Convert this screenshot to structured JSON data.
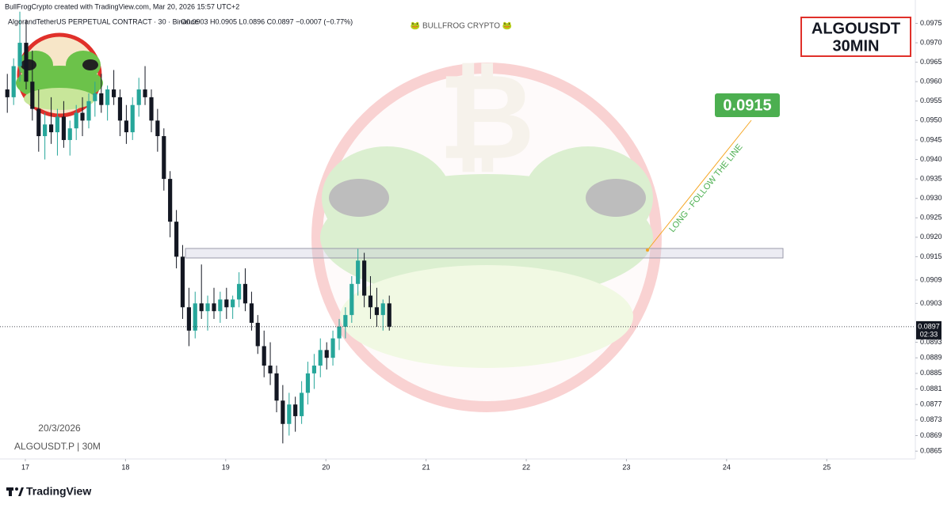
{
  "chart_data": {
    "type": "candlestick",
    "credit": "BullFrogCrypto created with TradingView.com, Mar 20, 2026 15:57 UTC+2",
    "legend": "AlgorandTetherUS PERPETUAL CONTRACT · 30 · Binance",
    "ohlc_text": "O0.0903 H0.0905 L0.0896 C0.0897 −0.0007 (−0.77%)",
    "watermark": "🐸 BULLFROG CRYPTO 🐸",
    "badge": {
      "line1": "ALGOUSDT",
      "line2": "30MIN"
    },
    "target_label": "0.0915",
    "annotation": "LONG - FOLLOW THE LINE",
    "date_text": "20/3/2026",
    "symbol_text": "ALGOUSDT.P | 30M",
    "brand": "TradingView",
    "up_color": "#26a69a",
    "down_color": "#131722",
    "x": [
      16.82,
      16.883,
      16.945,
      17.008,
      17.07,
      17.133,
      17.195,
      17.258,
      17.32,
      17.383,
      17.445,
      17.508,
      17.57,
      17.633,
      17.695,
      17.758,
      17.82,
      17.883,
      17.945,
      18.008,
      18.07,
      18.133,
      18.195,
      18.258,
      18.32,
      18.383,
      18.445,
      18.508,
      18.57,
      18.633,
      18.695,
      18.758,
      18.82,
      18.883,
      18.945,
      19.008,
      19.07,
      19.133,
      19.195,
      19.258,
      19.32,
      19.383,
      19.445,
      19.508,
      19.57,
      19.633,
      19.695,
      19.758,
      19.82,
      19.883,
      19.945,
      20.008,
      20.07,
      20.133,
      20.195,
      20.258,
      20.32,
      20.383,
      20.445,
      20.508,
      20.57,
      20.633
    ],
    "open": [
      0.0958,
      0.0956,
      0.0964,
      0.097,
      0.096,
      0.0953,
      0.0946,
      0.0949,
      0.0947,
      0.0951,
      0.0945,
      0.0948,
      0.0952,
      0.095,
      0.0955,
      0.0957,
      0.0954,
      0.0958,
      0.0956,
      0.095,
      0.0947,
      0.0954,
      0.0958,
      0.0956,
      0.095,
      0.0946,
      0.0935,
      0.0924,
      0.0915,
      0.0902,
      0.0896,
      0.0903,
      0.0901,
      0.0903,
      0.0901,
      0.0904,
      0.0902,
      0.0904,
      0.0908,
      0.0903,
      0.0898,
      0.0892,
      0.0887,
      0.0885,
      0.0878,
      0.0872,
      0.0877,
      0.0874,
      0.088,
      0.0885,
      0.0887,
      0.0891,
      0.0889,
      0.0894,
      0.0897,
      0.09,
      0.0908,
      0.0914,
      0.0905,
      0.0902,
      0.09,
      0.0903
    ],
    "high": [
      0.0962,
      0.0966,
      0.0978,
      0.0976,
      0.0968,
      0.0958,
      0.0952,
      0.0956,
      0.0953,
      0.0955,
      0.095,
      0.0954,
      0.0956,
      0.0957,
      0.096,
      0.0962,
      0.0959,
      0.0963,
      0.0958,
      0.0954,
      0.0956,
      0.0961,
      0.0964,
      0.0958,
      0.0953,
      0.0948,
      0.0937,
      0.0927,
      0.0918,
      0.0907,
      0.0906,
      0.0913,
      0.0905,
      0.0907,
      0.0906,
      0.0907,
      0.0905,
      0.0911,
      0.0912,
      0.0906,
      0.09,
      0.0896,
      0.0893,
      0.0887,
      0.0882,
      0.088,
      0.0879,
      0.0883,
      0.0888,
      0.089,
      0.0894,
      0.0893,
      0.0896,
      0.0899,
      0.0902,
      0.091,
      0.0917,
      0.0916,
      0.091,
      0.0907,
      0.0904,
      0.0905
    ],
    "low": [
      0.0952,
      0.0954,
      0.096,
      0.0958,
      0.095,
      0.0942,
      0.094,
      0.0944,
      0.0941,
      0.0943,
      0.0941,
      0.0945,
      0.0946,
      0.0948,
      0.0951,
      0.0952,
      0.095,
      0.0954,
      0.0946,
      0.0944,
      0.0945,
      0.0951,
      0.0954,
      0.0947,
      0.0942,
      0.0932,
      0.092,
      0.0912,
      0.0899,
      0.0892,
      0.0894,
      0.0899,
      0.0896,
      0.0899,
      0.0898,
      0.0899,
      0.0899,
      0.0902,
      0.0901,
      0.0896,
      0.089,
      0.0884,
      0.0882,
      0.0875,
      0.0867,
      0.0869,
      0.087,
      0.0872,
      0.0877,
      0.0881,
      0.0884,
      0.0886,
      0.0887,
      0.0891,
      0.0894,
      0.0898,
      0.0905,
      0.0902,
      0.0899,
      0.0897,
      0.0896,
      0.0896
    ],
    "close": [
      0.0956,
      0.0964,
      0.097,
      0.096,
      0.0953,
      0.0946,
      0.0949,
      0.0947,
      0.0951,
      0.0945,
      0.0948,
      0.0952,
      0.095,
      0.0955,
      0.0957,
      0.0954,
      0.0958,
      0.0956,
      0.095,
      0.0947,
      0.0954,
      0.0958,
      0.0956,
      0.095,
      0.0946,
      0.0935,
      0.0924,
      0.0915,
      0.0902,
      0.0896,
      0.0903,
      0.0901,
      0.0903,
      0.0901,
      0.0904,
      0.0902,
      0.0904,
      0.0908,
      0.0903,
      0.0898,
      0.0892,
      0.0887,
      0.0885,
      0.0878,
      0.0872,
      0.0877,
      0.0874,
      0.088,
      0.0885,
      0.0887,
      0.0891,
      0.0889,
      0.0894,
      0.0897,
      0.09,
      0.0908,
      0.0914,
      0.0905,
      0.0902,
      0.09,
      0.0903,
      0.0897
    ],
    "xlim": [
      16.747,
      25.884
    ],
    "xticks": [
      17,
      18,
      19,
      20,
      21,
      22,
      23,
      24,
      25
    ],
    "ylim": [
      0.0863,
      0.0981
    ],
    "yticks": [
      0.0975,
      {
        "value": 0.097,
        "label": "0.0970"
      },
      0.0965,
      {
        "value": 0.096,
        "label": "0.0960"
      },
      0.0955,
      {
        "value": 0.095,
        "label": "0.0950"
      },
      0.0945,
      {
        "value": 0.094,
        "label": "0.0940"
      },
      0.0935,
      {
        "value": 0.093,
        "label": "0.0930"
      },
      0.0925,
      {
        "value": 0.092,
        "label": "0.0920"
      },
      0.0915,
      0.0909,
      0.0903,
      0.0893,
      0.0889,
      0.0885,
      0.0881,
      0.0877,
      0.0873,
      0.0869,
      0.0865
    ],
    "last_price": {
      "value": 0.0897,
      "label": "0.0897"
    },
    "countdown": "02:33"
  }
}
